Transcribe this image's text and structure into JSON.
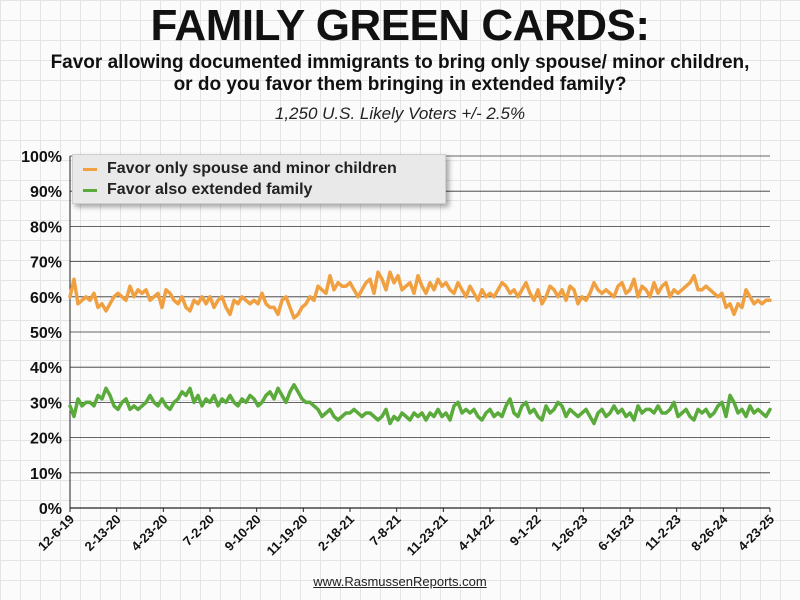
{
  "title": "FAMILY GREEN CARDS:",
  "subtitle": "Favor allowing documented immigrants to bring only spouse/ minor children, or do you favor them bringing in extended family?",
  "sample": "1,250 U.S. Likely Voters +/- 2.5%",
  "footer": "www.RasmussenReports.com",
  "colors": {
    "spouse": "#f0a040",
    "extended": "#5aaa3c"
  },
  "chart_data": {
    "type": "line",
    "ylim": [
      0,
      100
    ],
    "y_ticks": [
      "0%",
      "10%",
      "20%",
      "30%",
      "40%",
      "50%",
      "60%",
      "70%",
      "80%",
      "90%",
      "100%"
    ],
    "x_tick_labels": [
      "12-6-19",
      "2-13-20",
      "4-23-20",
      "7-2-20",
      "9-10-20",
      "11-19-20",
      "2-18-21",
      "7-8-21",
      "11-23-21",
      "4-14-22",
      "9-1-22",
      "1-26-23",
      "6-15-23",
      "11-2-23",
      "8-26-24",
      "4-23-25"
    ],
    "legend_position": "top-left",
    "grid": true,
    "series": [
      {
        "name": "Favor only spouse and minor children",
        "values": [
          60,
          65,
          58,
          59,
          60,
          59,
          61,
          57,
          58,
          56,
          58,
          60,
          61,
          60,
          59,
          63,
          60,
          62,
          61,
          62,
          59,
          60,
          61,
          57,
          62,
          61,
          59,
          58,
          60,
          57,
          56,
          59,
          58,
          60,
          58,
          60,
          57,
          59,
          60,
          57,
          55,
          59,
          58,
          60,
          59,
          58,
          59,
          58,
          61,
          58,
          57,
          57,
          55,
          59,
          60,
          57,
          54,
          55,
          57,
          58,
          60,
          59,
          63,
          62,
          61,
          66,
          62,
          64,
          63,
          63,
          64,
          62,
          60,
          62,
          64,
          65,
          61,
          67,
          65,
          62,
          67,
          64,
          66,
          62,
          63,
          64,
          61,
          66,
          63,
          61,
          64,
          62,
          65,
          63,
          64,
          62,
          61,
          64,
          62,
          60,
          63,
          61,
          59,
          62,
          60,
          61,
          60,
          62,
          64,
          63,
          61,
          62,
          60,
          62,
          64,
          61,
          59,
          62,
          58,
          60,
          63,
          62,
          60,
          62,
          59,
          63,
          62,
          58,
          60,
          59,
          61,
          64,
          62,
          61,
          62,
          61,
          60,
          63,
          64,
          61,
          62,
          65,
          60,
          63,
          62,
          60,
          64,
          61,
          63,
          64,
          60,
          62,
          61,
          62,
          63,
          64,
          66,
          62,
          62,
          63,
          62,
          61,
          60,
          61,
          57,
          58,
          55,
          58,
          57,
          62,
          60,
          58,
          59,
          58,
          59,
          59
        ]
      },
      {
        "name": "Favor also extended family",
        "values": [
          29,
          26,
          31,
          29,
          30,
          30,
          29,
          32,
          31,
          34,
          32,
          29,
          28,
          30,
          31,
          28,
          29,
          28,
          29,
          30,
          32,
          30,
          29,
          31,
          29,
          28,
          30,
          31,
          33,
          32,
          34,
          30,
          32,
          29,
          31,
          30,
          32,
          29,
          31,
          30,
          32,
          30,
          29,
          31,
          30,
          32,
          31,
          29,
          30,
          32,
          33,
          31,
          34,
          32,
          30,
          33,
          35,
          33,
          31,
          30,
          30,
          29,
          28,
          26,
          27,
          28,
          26,
          25,
          26,
          27,
          27,
          28,
          27,
          26,
          27,
          27,
          26,
          25,
          26,
          28,
          24,
          26,
          25,
          27,
          26,
          25,
          27,
          26,
          27,
          25,
          27,
          26,
          28,
          26,
          27,
          25,
          29,
          30,
          27,
          28,
          27,
          28,
          26,
          25,
          27,
          28,
          26,
          27,
          26,
          29,
          31,
          27,
          26,
          29,
          30,
          27,
          28,
          26,
          25,
          29,
          27,
          28,
          30,
          29,
          26,
          28,
          27,
          26,
          27,
          28,
          26,
          24,
          27,
          28,
          26,
          27,
          29,
          27,
          28,
          26,
          27,
          25,
          29,
          27,
          28,
          28,
          27,
          29,
          27,
          27,
          28,
          30,
          26,
          27,
          28,
          26,
          25,
          28,
          27,
          28,
          26,
          27,
          29,
          30,
          26,
          32,
          30,
          27,
          28,
          26,
          29,
          27,
          28,
          27,
          26,
          28
        ]
      }
    ]
  }
}
